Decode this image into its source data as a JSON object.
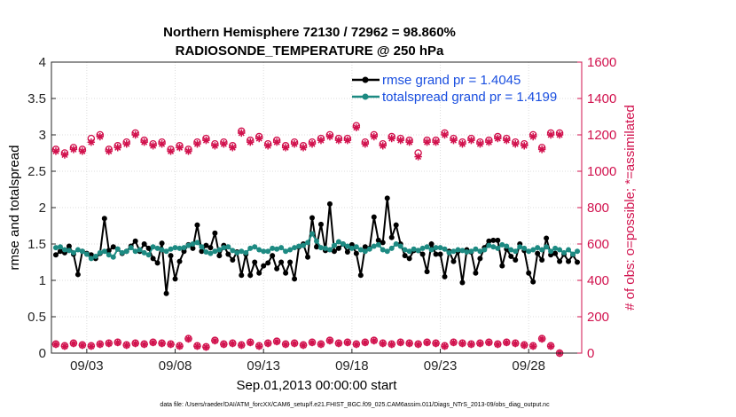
{
  "chart_data": {
    "type": "line",
    "title_line1": "Northern Hemisphere 72130 / 72962 = 98.860%",
    "title_line2": "RADIOSONDE_TEMPERATURE @ 250 hPa",
    "xlabel": "Sep.01,2013 00:00:00 start",
    "ylabel_left": "rmse and totalspread",
    "ylabel_right": "# of obs: o=possible; *=assimilated",
    "footnote": "data file: /Users/raeder/DAI/ATM_forcXX/CAM6_setup/f.e21.FHIST_BGC.f09_025.CAM6assim.011/Diags_NTrS_2013-09/obs_diag_output.nc",
    "ylim_left": [
      0,
      4
    ],
    "ylim_right": [
      0,
      1600
    ],
    "yticks_left": [
      "0",
      "0.5",
      "1",
      "1.5",
      "2",
      "2.5",
      "3",
      "3.5",
      "4"
    ],
    "yticks_right": [
      "0",
      "200",
      "400",
      "600",
      "800",
      "1000",
      "1200",
      "1400",
      "1600"
    ],
    "xlim_days": [
      1.0,
      31.0
    ],
    "xticks": [
      {
        "day": 3,
        "label": "09/03"
      },
      {
        "day": 8,
        "label": "09/08"
      },
      {
        "day": 13,
        "label": "09/13"
      },
      {
        "day": 18,
        "label": "09/18"
      },
      {
        "day": 23,
        "label": "09/23"
      },
      {
        "day": 28,
        "label": "09/28"
      }
    ],
    "legend": [
      {
        "name": "rmse grand pr = 1.4045",
        "color": "#000000"
      },
      {
        "name": "totalspread grand pr = 1.4199",
        "color": "#1d8a82"
      }
    ],
    "series": [
      {
        "name": "rmse",
        "axis": "left",
        "color": "#000000",
        "x_start_day": 1.25,
        "x_step_days": 0.25,
        "values": [
          1.35,
          1.4,
          1.38,
          1.47,
          1.36,
          1.08,
          1.4,
          1.37,
          1.35,
          1.3,
          1.37,
          1.85,
          1.41,
          1.46,
          1.43,
          1.37,
          1.4,
          1.47,
          1.54,
          1.4,
          1.5,
          1.44,
          1.3,
          1.24,
          1.51,
          0.82,
          1.34,
          1.02,
          1.26,
          1.4,
          1.49,
          1.44,
          1.76,
          1.4,
          1.48,
          1.45,
          1.65,
          1.34,
          1.48,
          1.36,
          1.28,
          1.39,
          1.07,
          1.36,
          1.07,
          1.25,
          1.1,
          1.2,
          1.24,
          1.34,
          1.16,
          1.25,
          1.1,
          1.25,
          1.02,
          1.46,
          1.5,
          1.32,
          1.86,
          1.46,
          1.77,
          1.41,
          2.05,
          1.4,
          1.44,
          1.5,
          1.39,
          1.49,
          1.37,
          1.07,
          1.46,
          1.44,
          1.87,
          1.55,
          1.52,
          2.13,
          1.59,
          1.76,
          1.5,
          1.34,
          1.3,
          1.41,
          1.41,
          1.36,
          1.12,
          1.5,
          1.36,
          1.36,
          1.05,
          1.4,
          1.26,
          1.4,
          0.97,
          1.42,
          1.39,
          1.1,
          1.3,
          1.45,
          1.54,
          1.55,
          1.55,
          1.2,
          1.43,
          1.33,
          1.28,
          1.5,
          1.41,
          1.1,
          0.98,
          1.37,
          1.28,
          1.58,
          1.35,
          1.37,
          1.26,
          1.36,
          1.26,
          1.35,
          1.25
        ]
      },
      {
        "name": "totalspread",
        "axis": "left",
        "color": "#1d8a82",
        "x_start_day": 1.25,
        "x_step_days": 0.25,
        "values": [
          1.45,
          1.46,
          1.42,
          1.41,
          1.38,
          1.42,
          1.4,
          1.36,
          1.3,
          1.33,
          1.38,
          1.4,
          1.35,
          1.32,
          1.43,
          1.38,
          1.4,
          1.45,
          1.4,
          1.42,
          1.38,
          1.35,
          1.46,
          1.44,
          1.42,
          1.4,
          1.43,
          1.45,
          1.44,
          1.45,
          1.48,
          1.5,
          1.52,
          1.46,
          1.39,
          1.37,
          1.4,
          1.42,
          1.45,
          1.46,
          1.41,
          1.38,
          1.4,
          1.38,
          1.44,
          1.46,
          1.42,
          1.4,
          1.4,
          1.44,
          1.43,
          1.45,
          1.4,
          1.42,
          1.45,
          1.47,
          1.48,
          1.52,
          1.64,
          1.54,
          1.45,
          1.44,
          1.42,
          1.48,
          1.53,
          1.5,
          1.47,
          1.44,
          1.46,
          1.42,
          1.4,
          1.43,
          1.47,
          1.49,
          1.42,
          1.4,
          1.44,
          1.5,
          1.47,
          1.42,
          1.4,
          1.43,
          1.41,
          1.44,
          1.46,
          1.42,
          1.45,
          1.45,
          1.43,
          1.38,
          1.4,
          1.42,
          1.41,
          1.39,
          1.4,
          1.43,
          1.4,
          1.42,
          1.48,
          1.46,
          1.44,
          1.49,
          1.47,
          1.42,
          1.4,
          1.46,
          1.44,
          1.4,
          1.42,
          1.45,
          1.42,
          1.46,
          1.4,
          1.44,
          1.42,
          1.38,
          1.42,
          1.36,
          1.4
        ]
      },
      {
        "name": "obs possible",
        "axis": "right",
        "color": "#d1114d",
        "marker": "circle",
        "x_start_day": 1.25,
        "x_step_days": 0.5,
        "values": [
          1120,
          1100,
          1130,
          1120,
          1180,
          1200,
          1120,
          1140,
          1160,
          1210,
          1170,
          1150,
          1160,
          1120,
          1140,
          1120,
          1160,
          1180,
          1150,
          1160,
          1140,
          1220,
          1170,
          1190,
          1150,
          1170,
          1140,
          1160,
          1140,
          1160,
          1180,
          1200,
          1180,
          1180,
          1250,
          1160,
          1200,
          1150,
          1190,
          1180,
          1170,
          1100,
          1170,
          1170,
          1210,
          1180,
          1160,
          1180,
          1160,
          1170,
          1190,
          1180,
          1160,
          1150,
          1200,
          1130,
          1210,
          1210
        ]
      },
      {
        "name": "obs assimilated",
        "axis": "right",
        "color": "#d1114d",
        "marker": "star",
        "x_start_day": 1.25,
        "x_step_days": 0.5,
        "values": [
          1110,
          1090,
          1120,
          1110,
          1160,
          1190,
          1110,
          1130,
          1150,
          1200,
          1160,
          1140,
          1150,
          1110,
          1130,
          1110,
          1150,
          1170,
          1140,
          1150,
          1130,
          1210,
          1160,
          1180,
          1140,
          1160,
          1130,
          1150,
          1130,
          1150,
          1170,
          1190,
          1170,
          1170,
          1240,
          1150,
          1190,
          1140,
          1180,
          1170,
          1160,
          1080,
          1160,
          1160,
          1200,
          1170,
          1150,
          1170,
          1150,
          1160,
          1180,
          1170,
          1150,
          1140,
          1190,
          1120,
          1200,
          1200
        ]
      },
      {
        "name": "obs low possible",
        "axis": "right",
        "color": "#d1114d",
        "marker": "circle",
        "x_start_day": 1.25,
        "x_step_days": 0.5,
        "values": [
          50,
          40,
          55,
          45,
          40,
          50,
          55,
          60,
          45,
          55,
          50,
          60,
          55,
          50,
          40,
          80,
          40,
          35,
          70,
          50,
          55,
          45,
          60,
          40,
          55,
          65,
          50,
          55,
          45,
          60,
          50,
          70,
          55,
          60,
          50,
          60,
          70,
          55,
          50,
          60,
          55,
          50,
          60,
          55,
          40,
          60,
          55,
          50,
          55,
          60,
          50,
          60,
          55,
          45,
          40,
          80,
          40,
          0
        ]
      },
      {
        "name": "obs low assimilated",
        "axis": "right",
        "color": "#d1114d",
        "marker": "star",
        "x_start_day": 1.25,
        "x_step_days": 0.5,
        "values": [
          48,
          38,
          53,
          43,
          38,
          48,
          53,
          58,
          43,
          53,
          48,
          58,
          53,
          48,
          38,
          78,
          38,
          33,
          68,
          48,
          53,
          43,
          58,
          38,
          53,
          63,
          48,
          53,
          43,
          58,
          48,
          68,
          53,
          58,
          48,
          58,
          68,
          53,
          48,
          58,
          53,
          48,
          58,
          53,
          38,
          58,
          53,
          48,
          53,
          58,
          48,
          58,
          53,
          43,
          38,
          78,
          38,
          0
        ]
      }
    ]
  }
}
